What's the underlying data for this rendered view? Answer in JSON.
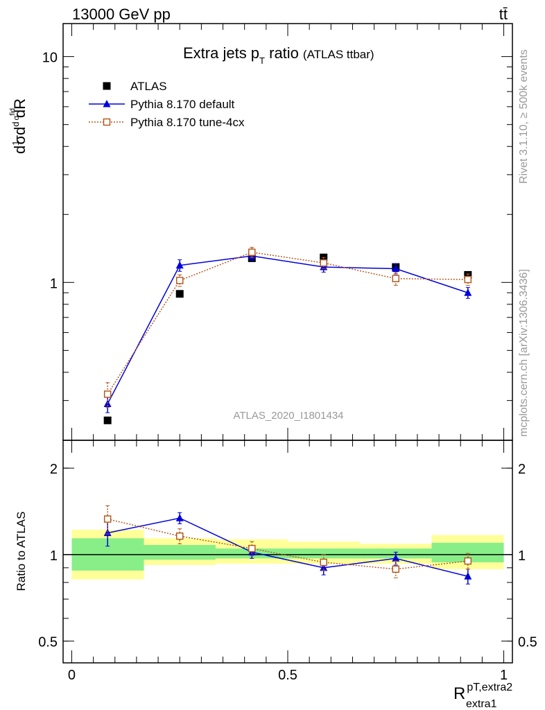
{
  "header": {
    "left": "13000 GeV pp",
    "right": "tt̄"
  },
  "side_labels": {
    "rivet": "Rivet 3.1.10, ≥ 500k events",
    "mcplots": "mcplots.cern.ch [arXiv:1306.3436]"
  },
  "colors": {
    "data": "#000000",
    "default": "#0000dd",
    "tune": "#b35a1f",
    "band_inner": "#88ee88",
    "band_outer": "#ffff99",
    "watermark": "#999999"
  },
  "chart_data": [
    {
      "type": "line",
      "title": "Extra jets p",
      "title_sub": "T",
      "title_rest": " ratio",
      "title_note": "(ATLAS ttbar)",
      "watermark": "ATLAS_2020_I1801434",
      "ylabel": "d¹σ d d σ^fid / dR (p_T,extra2 / extra1)",
      "y_scale": "log",
      "ylim": [
        0.2,
        14
      ],
      "xlim": [
        -0.02,
        1.02
      ],
      "y_ticks": [
        {
          "v": 1,
          "label": "1"
        },
        {
          "v": 10,
          "label": "10"
        }
      ],
      "legend_position": "top-left",
      "series": [
        {
          "name": "ATLAS",
          "style": "data",
          "x": [
            0.083,
            0.25,
            0.417,
            0.583,
            0.75,
            0.917
          ],
          "y": [
            0.245,
            0.89,
            1.28,
            1.29,
            1.17,
            1.08
          ]
        },
        {
          "name": "Pythia 8.170 default",
          "style": "default",
          "x": [
            0.083,
            0.25,
            0.417,
            0.583,
            0.75,
            0.917
          ],
          "y": [
            0.29,
            1.19,
            1.31,
            1.17,
            1.15,
            0.9
          ],
          "err": [
            0.025,
            0.07,
            0.06,
            0.06,
            0.06,
            0.05
          ]
        },
        {
          "name": "Pythia 8.170 tune-4cx",
          "style": "tune",
          "x": [
            0.083,
            0.25,
            0.417,
            0.583,
            0.75,
            0.917
          ],
          "y": [
            0.32,
            1.02,
            1.36,
            1.22,
            1.04,
            1.03
          ],
          "err": [
            0.04,
            0.06,
            0.07,
            0.07,
            0.07,
            0.06
          ]
        }
      ]
    },
    {
      "type": "line",
      "ylabel": "Ratio to ATLAS",
      "xlabel": "R",
      "xlabel_sup": "pT,extra2",
      "xlabel_sub": "extra1",
      "y_scale": "log",
      "ylim": [
        0.42,
        2.5
      ],
      "xlim": [
        -0.02,
        1.02
      ],
      "x_ticks": [
        {
          "v": 0,
          "label": "0"
        },
        {
          "v": 0.5,
          "label": "0.5"
        },
        {
          "v": 1,
          "label": "1"
        }
      ],
      "y_ticks": [
        {
          "v": 0.5,
          "label": "0.5"
        },
        {
          "v": 1,
          "label": "1"
        },
        {
          "v": 2,
          "label": "2"
        }
      ],
      "bands": [
        {
          "x0": 0.0,
          "x1": 0.167,
          "inner": [
            0.88,
            1.14
          ],
          "outer": [
            0.82,
            1.22
          ]
        },
        {
          "x0": 0.167,
          "x1": 0.333,
          "inner": [
            0.96,
            1.08
          ],
          "outer": [
            0.92,
            1.14
          ]
        },
        {
          "x0": 0.333,
          "x1": 0.5,
          "inner": [
            0.97,
            1.05
          ],
          "outer": [
            0.93,
            1.13
          ]
        },
        {
          "x0": 0.5,
          "x1": 0.667,
          "inner": [
            0.97,
            1.05
          ],
          "outer": [
            0.93,
            1.11
          ]
        },
        {
          "x0": 0.667,
          "x1": 0.833,
          "inner": [
            0.97,
            1.05
          ],
          "outer": [
            0.93,
            1.09
          ]
        },
        {
          "x0": 0.833,
          "x1": 1.0,
          "inner": [
            0.94,
            1.1
          ],
          "outer": [
            0.89,
            1.17
          ]
        }
      ],
      "series": [
        {
          "name": "Pythia 8.170 default",
          "style": "default",
          "x": [
            0.083,
            0.25,
            0.417,
            0.583,
            0.75,
            0.917
          ],
          "y": [
            1.19,
            1.34,
            1.02,
            0.9,
            0.97,
            0.84
          ],
          "err": [
            0.12,
            0.06,
            0.05,
            0.05,
            0.05,
            0.05
          ]
        },
        {
          "name": "Pythia 8.170 tune-4cx",
          "style": "tune",
          "x": [
            0.083,
            0.25,
            0.417,
            0.583,
            0.75,
            0.917
          ],
          "y": [
            1.33,
            1.16,
            1.05,
            0.94,
            0.89,
            0.95
          ],
          "err": [
            0.15,
            0.07,
            0.06,
            0.06,
            0.06,
            0.06
          ]
        }
      ]
    }
  ]
}
